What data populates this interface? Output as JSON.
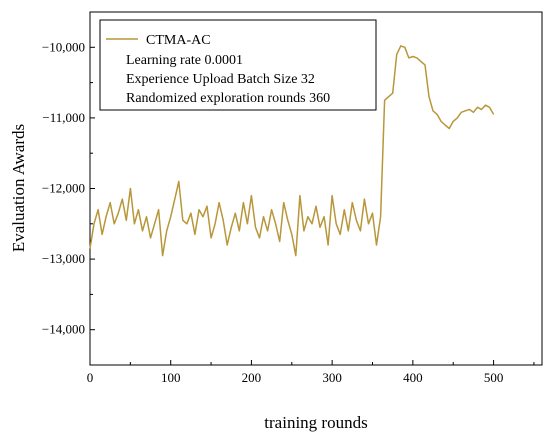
{
  "chart_data": {
    "type": "line",
    "xlabel": "training rounds",
    "ylabel": "Evaluation Awards",
    "xlim": [
      0,
      560
    ],
    "ylim": [
      -14500,
      -9500
    ],
    "x_ticks": [
      0,
      100,
      200,
      300,
      400,
      500
    ],
    "x_tick_labels": [
      "0",
      "100",
      "200",
      "300",
      "400",
      "500"
    ],
    "y_ticks": [
      -14000,
      -13000,
      -12000,
      -11000,
      -10000
    ],
    "y_tick_labels": [
      "−14,000",
      "−13,000",
      "−12,000",
      "−11,000",
      "−10,000"
    ],
    "legend": {
      "placement": "top-left",
      "entries": [
        "CTMA-AC",
        "Learning rate 0.0001",
        "Experience Upload Batch Size 32",
        "Randomized exploration rounds 360"
      ]
    },
    "colors": {
      "series": "#B8963A",
      "axis": "#000000"
    },
    "series": [
      {
        "name": "CTMA-AC",
        "x": [
          0,
          5,
          10,
          15,
          20,
          25,
          30,
          35,
          40,
          45,
          50,
          55,
          60,
          65,
          70,
          75,
          80,
          85,
          90,
          95,
          100,
          105,
          110,
          115,
          120,
          125,
          130,
          135,
          140,
          145,
          150,
          155,
          160,
          165,
          170,
          175,
          180,
          185,
          190,
          195,
          200,
          205,
          210,
          215,
          220,
          225,
          230,
          235,
          240,
          245,
          250,
          255,
          260,
          265,
          270,
          275,
          280,
          285,
          290,
          295,
          300,
          305,
          310,
          315,
          320,
          325,
          330,
          335,
          340,
          345,
          350,
          355,
          360,
          365,
          370,
          375,
          380,
          385,
          390,
          395,
          400,
          405,
          410,
          415,
          420,
          425,
          430,
          435,
          440,
          445,
          450,
          455,
          460,
          465,
          470,
          475,
          480,
          485,
          490,
          495,
          500
        ],
        "values": [
          -12850,
          -12500,
          -12300,
          -12650,
          -12400,
          -12200,
          -12500,
          -12350,
          -12150,
          -12450,
          -12000,
          -12500,
          -12300,
          -12600,
          -12400,
          -12700,
          -12500,
          -12300,
          -12950,
          -12600,
          -12400,
          -12150,
          -11900,
          -12450,
          -12500,
          -12350,
          -12650,
          -12300,
          -12400,
          -12250,
          -12700,
          -12500,
          -12200,
          -12450,
          -12800,
          -12550,
          -12350,
          -12600,
          -12200,
          -12500,
          -12100,
          -12550,
          -12700,
          -12400,
          -12600,
          -12300,
          -12500,
          -12750,
          -12200,
          -12450,
          -12650,
          -12950,
          -12100,
          -12600,
          -12400,
          -12500,
          -12250,
          -12550,
          -12400,
          -12800,
          -12100,
          -12500,
          -12650,
          -12300,
          -12600,
          -12200,
          -12450,
          -12600,
          -12150,
          -12500,
          -12350,
          -12800,
          -12400,
          -10750,
          -10700,
          -10650,
          -10100,
          -9980,
          -10000,
          -10150,
          -10130,
          -10150,
          -10200,
          -10250,
          -10700,
          -10900,
          -10950,
          -11050,
          -11100,
          -11150,
          -11050,
          -11000,
          -10920,
          -10900,
          -10880,
          -10920,
          -10850,
          -10880,
          -10820,
          -10850,
          -10950
        ]
      }
    ]
  }
}
